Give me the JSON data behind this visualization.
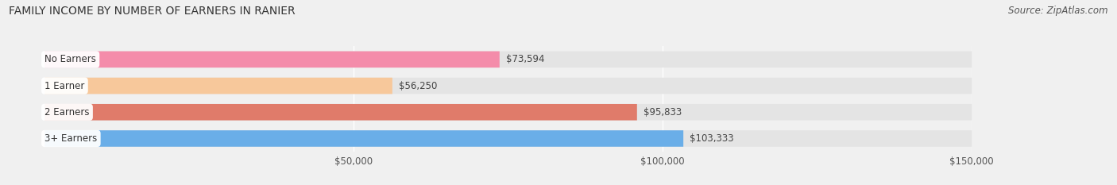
{
  "title": "FAMILY INCOME BY NUMBER OF EARNERS IN RANIER",
  "source": "Source: ZipAtlas.com",
  "categories": [
    "No Earners",
    "1 Earner",
    "2 Earners",
    "3+ Earners"
  ],
  "values": [
    73594,
    56250,
    95833,
    103333
  ],
  "bar_colors": [
    "#f48caa",
    "#f7c89b",
    "#e07b6a",
    "#6aaee8"
  ],
  "bar_labels": [
    "$73,594",
    "$56,250",
    "$95,833",
    "$103,333"
  ],
  "xlim": [
    0,
    150000
  ],
  "xticks": [
    50000,
    100000,
    150000
  ],
  "xtick_labels": [
    "$50,000",
    "$100,000",
    "$150,000"
  ],
  "background_color": "#f0f0f0",
  "bar_bg_color": "#e4e4e4",
  "title_fontsize": 10,
  "source_fontsize": 8.5,
  "label_fontsize": 8.5,
  "category_fontsize": 8.5,
  "bar_height": 0.62,
  "fig_width": 14.06,
  "fig_height": 2.33
}
